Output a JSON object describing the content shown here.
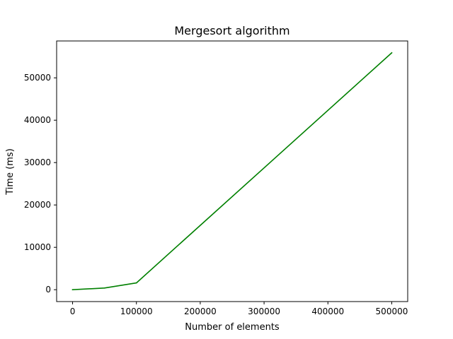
{
  "chart_data": {
    "type": "line",
    "title": "Mergesort algorithm",
    "xlabel": "Number of elements",
    "ylabel": "Time (ms)",
    "xlim": [
      -25000,
      525000
    ],
    "ylim": [
      -2800,
      58700
    ],
    "x_ticks": [
      0,
      100000,
      200000,
      300000,
      400000,
      500000
    ],
    "x_tick_labels": [
      "0",
      "100000",
      "200000",
      "300000",
      "400000",
      "500000"
    ],
    "y_ticks": [
      0,
      10000,
      20000,
      30000,
      40000,
      50000
    ],
    "y_tick_labels": [
      "0",
      "10000",
      "20000",
      "30000",
      "40000",
      "50000"
    ],
    "grid": false,
    "series": [
      {
        "color": "#008000",
        "x": [
          0,
          50000,
          100000,
          500000
        ],
        "y": [
          0,
          400,
          1600,
          55900
        ]
      }
    ]
  }
}
